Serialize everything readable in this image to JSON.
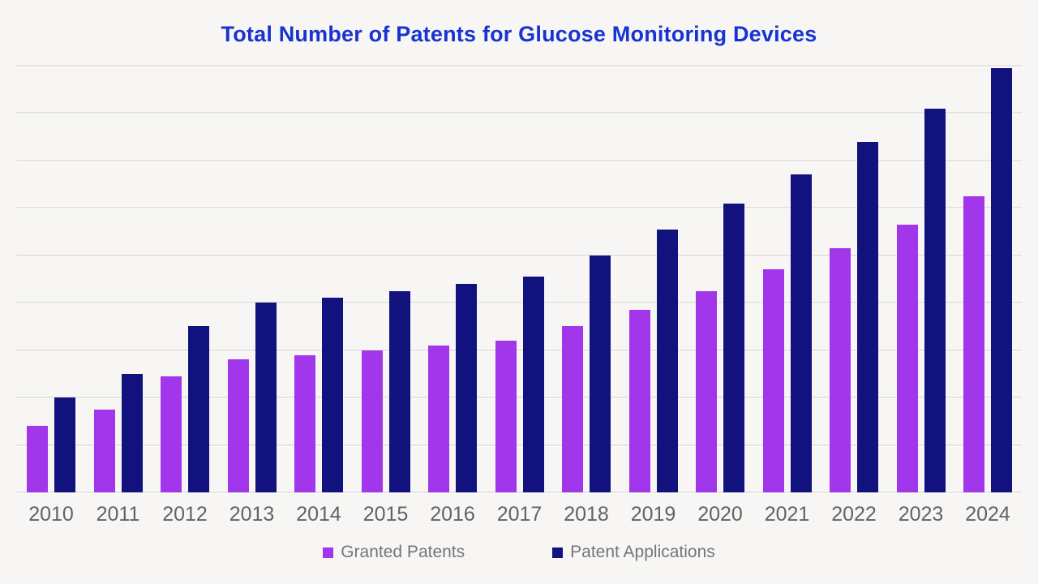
{
  "title": "Total Number of Patents for Glucose Monitoring Devices",
  "colors": {
    "title_text": "#1733d1",
    "granted_patents": "#a136ea",
    "patent_applications": "#12127e",
    "background": "#f7f6f4",
    "gridline": "#e5e4e2",
    "axis_label_text": "#636363",
    "legend_text": "#757575"
  },
  "chart_data": {
    "type": "bar",
    "title": "Total Number of Patents for Glucose Monitoring Devices",
    "categories": [
      "2010",
      "2011",
      "2012",
      "2013",
      "2014",
      "2015",
      "2016",
      "2017",
      "2018",
      "2019",
      "2020",
      "2021",
      "2022",
      "2023",
      "2024"
    ],
    "series": [
      {
        "name": "Granted Patents",
        "color": "#a136ea",
        "values": [
          140,
          175,
          245,
          280,
          290,
          300,
          310,
          320,
          350,
          385,
          425,
          470,
          515,
          565,
          625
        ]
      },
      {
        "name": "Patent Applications",
        "color": "#12127e",
        "values": [
          200,
          250,
          350,
          400,
          410,
          425,
          440,
          455,
          500,
          555,
          610,
          670,
          740,
          810,
          895
        ]
      }
    ],
    "xlabel": "",
    "ylabel": "",
    "ylim": [
      0,
      900
    ],
    "gridline_step": 100,
    "grid": true,
    "y_tick_labels_visible": false,
    "legend_position": "bottom"
  },
  "legend": {
    "granted_label": "Granted Patents",
    "applications_label": "Patent Applications"
  }
}
